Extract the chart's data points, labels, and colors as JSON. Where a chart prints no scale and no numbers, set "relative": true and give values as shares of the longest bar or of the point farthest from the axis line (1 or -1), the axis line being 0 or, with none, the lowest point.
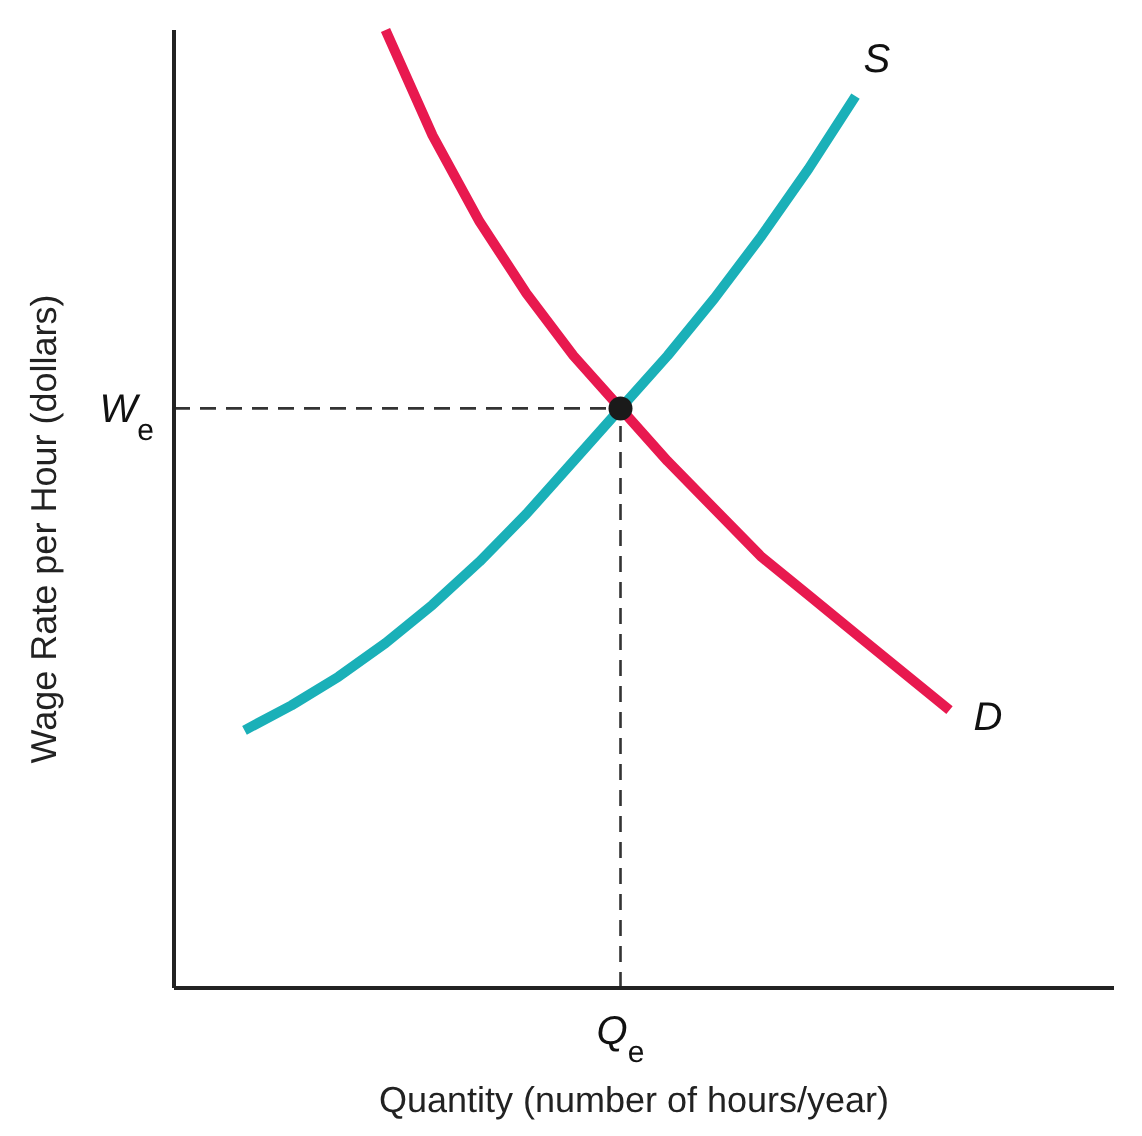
{
  "chart_data": {
    "type": "line",
    "relative": true,
    "xlabel": "Quantity (number of hours/year)",
    "ylabel": "Wage Rate per Hour (dollars)",
    "ylim": [
      0,
      1
    ],
    "line_style": "solid",
    "categories": [
      null,
      null,
      null,
      null,
      null,
      null,
      null,
      null,
      null,
      null,
      null,
      null,
      null,
      null,
      null,
      null,
      null,
      null,
      null,
      null
    ],
    "series": [
      {
        "name": "S",
        "color": "#1ab0b8",
        "values": [
          null,
          0.269,
          0.295,
          0.325,
          0.36,
          0.4,
          0.445,
          0.495,
          0.55,
          0.605,
          0.66,
          0.72,
          0.785,
          0.855,
          0.931,
          null,
          null,
          null,
          null,
          null
        ]
      },
      {
        "name": "D",
        "color": "#e8194f",
        "values": [
          null,
          null,
          null,
          null,
          1.0,
          0.89,
          0.8,
          0.725,
          0.66,
          0.605,
          0.55,
          0.5,
          0.45,
          0.41,
          0.37,
          0.33,
          0.29,
          null,
          null,
          null
        ]
      }
    ],
    "ref_lines": [
      {
        "axis": "y",
        "value": 0.605,
        "label": "W$_{e}$",
        "line_style": "dashed",
        "color": "#333333"
      }
    ],
    "annotations": [
      "Q$_{e}$"
    ]
  }
}
